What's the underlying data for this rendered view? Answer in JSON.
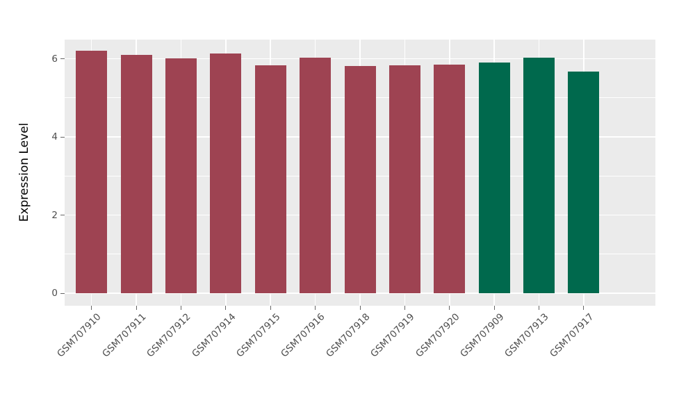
{
  "chart_data": {
    "type": "bar",
    "title": "",
    "xlabel": "",
    "ylabel": "Expression Level",
    "categories": [
      "GSM707910",
      "GSM707911",
      "GSM707912",
      "GSM707914",
      "GSM707915",
      "GSM707916",
      "GSM707918",
      "GSM707919",
      "GSM707920",
      "GSM707909",
      "GSM707913",
      "GSM707917"
    ],
    "values": [
      6.2,
      6.1,
      6.01,
      6.14,
      5.84,
      6.02,
      5.81,
      5.84,
      5.85,
      5.9,
      6.02,
      5.67
    ],
    "bar_colors": [
      "#9E4352",
      "#9E4352",
      "#9E4352",
      "#9E4352",
      "#9E4352",
      "#9E4352",
      "#9E4352",
      "#9E4352",
      "#9E4352",
      "#00694D",
      "#00694D",
      "#00694D"
    ],
    "group_colors": {
      "red": "#9E4352",
      "green": "#00694D"
    },
    "yticks": [
      0,
      2,
      4,
      6
    ],
    "ytick_labels": [
      "0",
      "2",
      "4",
      "6"
    ],
    "minor_yticks": [
      1,
      3,
      5
    ],
    "ylim": [
      0,
      6.5
    ],
    "grid": true,
    "legend": "none",
    "x_tick_rotation": 45,
    "panel_bg": "#EBEBEB",
    "grid_color": "#FFFFFF",
    "tick_color": "#666666",
    "tick_label_color": "#4D4D4D",
    "axis_title_color": "#000000"
  }
}
